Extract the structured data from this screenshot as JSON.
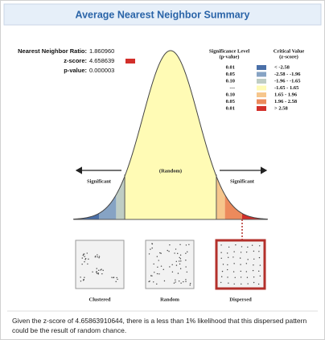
{
  "header": {
    "title": "Average Nearest Neighbor Summary"
  },
  "stats": [
    {
      "label": "Nearest Neighbor Ratio:",
      "value": "1.860960"
    },
    {
      "label": "z-score:",
      "value": "4.658639"
    },
    {
      "label": "p-value:",
      "value": "0.000003"
    }
  ],
  "legend": {
    "headers": [
      {
        "lines": [
          "Significance Level",
          "(p-value)"
        ]
      },
      {
        "lines": [
          "Critical Value",
          "(z-score)"
        ]
      }
    ],
    "rows": [
      {
        "p_value": "0.01",
        "z_score": "< -2.58",
        "color": "#4a6fa8"
      },
      {
        "p_value": "0.05",
        "z_score": "-2.58 - -1.96",
        "color": "#86a3c4"
      },
      {
        "p_value": "0.10",
        "z_score": "-1.96 - -1.65",
        "color": "#bfcdc4"
      },
      {
        "p_value": "---",
        "z_score": "-1.65 - 1.65",
        "color": "#fffbb5"
      },
      {
        "p_value": "0.10",
        "z_score": "1.65 - 1.96",
        "color": "#f6c68c"
      },
      {
        "p_value": "0.05",
        "z_score": "1.96 - 2.58",
        "color": "#ec8a5c"
      },
      {
        "p_value": "0.01",
        "z_score": "> 2.58",
        "color": "#d22f2a"
      }
    ]
  },
  "curve": {
    "center_label": "(Random)",
    "left_label": "Significant",
    "right_label": "Significant"
  },
  "patterns": [
    {
      "label": "Clustered"
    },
    {
      "label": "Random"
    },
    {
      "label": "Dispersed"
    }
  ],
  "footer": {
    "text": "Given the z-score of 4.65863910644, there is a less than 1% likelihood that this dispersed pattern could be the result of random chance."
  }
}
